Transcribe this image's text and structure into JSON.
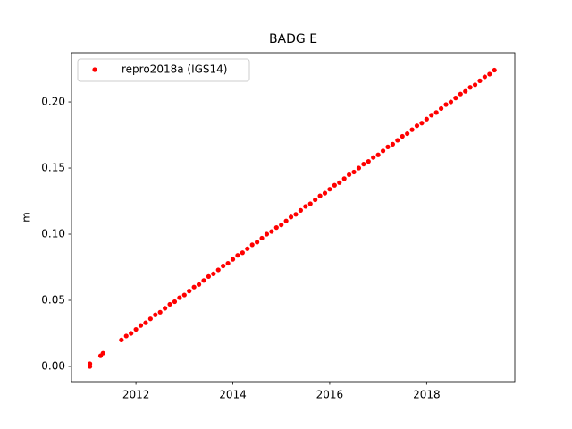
{
  "chart_data": {
    "type": "scatter",
    "title": "BADG E",
    "ylabel": "m",
    "x": [
      2011.05,
      2011.05,
      2011.27,
      2011.32,
      2011.7,
      2011.8,
      2011.9,
      2012.0,
      2012.1,
      2012.2,
      2012.3,
      2012.4,
      2012.5,
      2012.6,
      2012.7,
      2012.8,
      2012.9,
      2013.0,
      2013.1,
      2013.2,
      2013.3,
      2013.4,
      2013.5,
      2013.6,
      2013.7,
      2013.8,
      2013.9,
      2014.0,
      2014.1,
      2014.2,
      2014.3,
      2014.4,
      2014.5,
      2014.6,
      2014.7,
      2014.8,
      2014.9,
      2015.0,
      2015.1,
      2015.2,
      2015.3,
      2015.4,
      2015.5,
      2015.6,
      2015.7,
      2015.8,
      2015.9,
      2016.0,
      2016.1,
      2016.2,
      2016.3,
      2016.4,
      2016.5,
      2016.6,
      2016.7,
      2016.8,
      2016.9,
      2017.0,
      2017.1,
      2017.2,
      2017.3,
      2017.4,
      2017.5,
      2017.6,
      2017.7,
      2017.8,
      2017.9,
      2018.0,
      2018.1,
      2018.2,
      2018.3,
      2018.4,
      2018.5,
      2018.6,
      2018.7,
      2018.8,
      2018.9,
      2019.0,
      2019.1,
      2019.2,
      2019.3,
      2019.4
    ],
    "series": [
      {
        "name": "repro2018a (IGS14)",
        "color": "#ff0000",
        "values": [
          0.0,
          0.002,
          0.008,
          0.01,
          0.02,
          0.023,
          0.025,
          0.028,
          0.031,
          0.033,
          0.036,
          0.039,
          0.041,
          0.044,
          0.047,
          0.049,
          0.052,
          0.054,
          0.057,
          0.06,
          0.062,
          0.065,
          0.068,
          0.07,
          0.073,
          0.076,
          0.078,
          0.081,
          0.084,
          0.086,
          0.089,
          0.092,
          0.094,
          0.097,
          0.1,
          0.102,
          0.105,
          0.107,
          0.11,
          0.113,
          0.115,
          0.118,
          0.121,
          0.123,
          0.126,
          0.129,
          0.131,
          0.134,
          0.137,
          0.139,
          0.142,
          0.145,
          0.147,
          0.15,
          0.153,
          0.155,
          0.158,
          0.16,
          0.163,
          0.166,
          0.168,
          0.171,
          0.174,
          0.176,
          0.179,
          0.182,
          0.184,
          0.187,
          0.19,
          0.192,
          0.195,
          0.198,
          0.2,
          0.203,
          0.206,
          0.208,
          0.211,
          0.213,
          0.216,
          0.219,
          0.221,
          0.224
        ]
      }
    ],
    "xlim": [
      2010.67,
      2019.82
    ],
    "ylim": [
      -0.0115,
      0.2372
    ],
    "xticks": [
      2012,
      2014,
      2016,
      2018
    ],
    "yticks": [
      {
        "value": 0,
        "label": "0.00"
      },
      {
        "value": 0.05,
        "label": "0.05"
      },
      {
        "value": 0.1,
        "label": "0.10"
      },
      {
        "value": 0.15,
        "label": "0.15"
      },
      {
        "value": 0.2,
        "label": "0.20"
      }
    ],
    "legend": "upper left",
    "grid": false
  }
}
